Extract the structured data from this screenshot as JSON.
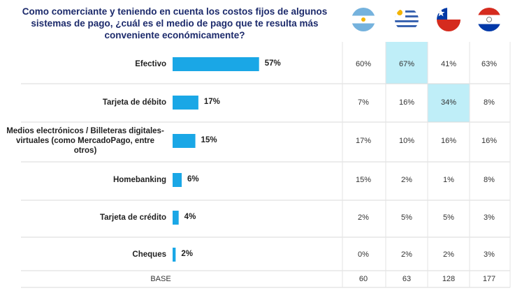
{
  "title": "Como comerciante y teniendo en cuenta los costos fijos de algunos sistemas de pago, ¿cuál es el medio de pago que te resulta        más conveniente económicamente?",
  "colors": {
    "bar": "#1aa7e6",
    "highlight": "#bfeef8",
    "title": "#1c2a6b"
  },
  "countries": [
    {
      "name": "argentina-flag-icon"
    },
    {
      "name": "uruguay-flag-icon"
    },
    {
      "name": "chile-flag-icon"
    },
    {
      "name": "paraguay-flag-icon"
    }
  ],
  "chart_data": {
    "type": "bar",
    "orientation": "horizontal",
    "categories": [
      "Efectivo",
      "Tarjeta de débito",
      "Medios electrónicos / Billeteras digitales-virtuales (como MercadoPago, entre otros)",
      "Homebanking",
      "Tarjeta de crédito",
      "Cheques"
    ],
    "values": [
      57,
      17,
      15,
      6,
      4,
      2
    ],
    "value_labels": [
      "57%",
      "17%",
      "15%",
      "6%",
      "4%",
      "2%"
    ],
    "xlim": [
      0,
      100
    ],
    "table": {
      "columns": [
        "argentina",
        "uruguay",
        "chile",
        "paraguay"
      ],
      "rows": [
        [
          "60%",
          "67%",
          "41%",
          "63%"
        ],
        [
          "7%",
          "16%",
          "34%",
          "8%"
        ],
        [
          "17%",
          "10%",
          "16%",
          "16%"
        ],
        [
          "15%",
          "2%",
          "1%",
          "8%"
        ],
        [
          "2%",
          "5%",
          "5%",
          "3%"
        ],
        [
          "0%",
          "2%",
          "2%",
          "3%"
        ]
      ],
      "highlighted": [
        [
          0,
          1
        ],
        [
          1,
          2
        ]
      ],
      "base_label": "BASE",
      "base": [
        "60",
        "63",
        "128",
        "177"
      ]
    }
  }
}
